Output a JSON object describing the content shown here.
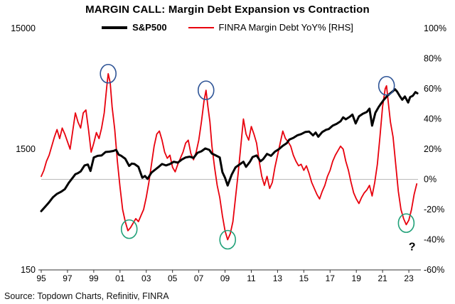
{
  "chart_data": {
    "type": "line",
    "title": "MARGIN CALL: Margin Debt Expansion vs Contraction",
    "source": "Source: Topdown Charts, Refinitiv, FINRA",
    "legend": [
      {
        "label": "S&P500",
        "color": "#000000"
      },
      {
        "label": "FINRA Margin Debt YoY% [RHS]",
        "color": "#e8000d"
      }
    ],
    "x_axis": {
      "range": [
        1995,
        2023.7
      ],
      "tick_years": [
        1995,
        1997,
        1999,
        2001,
        2003,
        2005,
        2007,
        2009,
        2011,
        2013,
        2015,
        2017,
        2019,
        2021,
        2023
      ],
      "tick_labels": [
        "95",
        "97",
        "99",
        "01",
        "03",
        "05",
        "07",
        "09",
        "11",
        "13",
        "15",
        "17",
        "19",
        "21",
        "23"
      ]
    },
    "left_axis": {
      "scale": "log",
      "range": [
        150,
        15000
      ],
      "tick_values": [
        15000,
        1500,
        150
      ],
      "tick_labels": [
        "15000",
        "1500",
        "150"
      ],
      "series": "S&P500"
    },
    "right_axis": {
      "scale": "linear",
      "range": [
        -60,
        100
      ],
      "tick_values": [
        100,
        80,
        60,
        40,
        20,
        0,
        -20,
        -40,
        -60
      ],
      "tick_labels": [
        "100%",
        "80%",
        "60%",
        "40%",
        "20%",
        "0%",
        "-20%",
        "-40%",
        "-60%"
      ],
      "series": "FINRA Margin Debt YoY%"
    },
    "zero_line": {
      "axis": "right",
      "value": 0,
      "color": "#bbbbbb"
    },
    "series": [
      {
        "name": "S&P500",
        "axis": "left",
        "color": "#000000",
        "width": 3,
        "points": [
          [
            1995.0,
            460
          ],
          [
            1995.3,
            500
          ],
          [
            1995.6,
            545
          ],
          [
            1995.9,
            600
          ],
          [
            1996.2,
            640
          ],
          [
            1996.5,
            665
          ],
          [
            1996.8,
            700
          ],
          [
            1997.1,
            790
          ],
          [
            1997.4,
            870
          ],
          [
            1997.6,
            930
          ],
          [
            1997.8,
            950
          ],
          [
            1998.0,
            980
          ],
          [
            1998.3,
            1100
          ],
          [
            1998.55,
            1120
          ],
          [
            1998.75,
            990
          ],
          [
            1999.0,
            1280
          ],
          [
            1999.3,
            1320
          ],
          [
            1999.6,
            1330
          ],
          [
            1999.9,
            1420
          ],
          [
            2000.2,
            1430
          ],
          [
            2000.5,
            1450
          ],
          [
            2000.7,
            1480
          ],
          [
            2000.9,
            1350
          ],
          [
            2001.1,
            1320
          ],
          [
            2001.4,
            1250
          ],
          [
            2001.7,
            1090
          ],
          [
            2001.9,
            1140
          ],
          [
            2002.1,
            1130
          ],
          [
            2002.4,
            1070
          ],
          [
            2002.7,
            870
          ],
          [
            2002.9,
            900
          ],
          [
            2003.1,
            850
          ],
          [
            2003.4,
            960
          ],
          [
            2003.7,
            1020
          ],
          [
            2003.9,
            1060
          ],
          [
            2004.2,
            1130
          ],
          [
            2004.5,
            1100
          ],
          [
            2004.8,
            1130
          ],
          [
            2005.1,
            1180
          ],
          [
            2005.4,
            1160
          ],
          [
            2005.7,
            1230
          ],
          [
            2006.0,
            1280
          ],
          [
            2006.3,
            1300
          ],
          [
            2006.6,
            1270
          ],
          [
            2006.9,
            1400
          ],
          [
            2007.2,
            1440
          ],
          [
            2007.5,
            1520
          ],
          [
            2007.8,
            1480
          ],
          [
            2008.0,
            1380
          ],
          [
            2008.3,
            1330
          ],
          [
            2008.6,
            1280
          ],
          [
            2008.8,
            970
          ],
          [
            2009.0,
            870
          ],
          [
            2009.2,
            750
          ],
          [
            2009.5,
            920
          ],
          [
            2009.8,
            1060
          ],
          [
            2010.1,
            1120
          ],
          [
            2010.4,
            1180
          ],
          [
            2010.6,
            1070
          ],
          [
            2010.9,
            1180
          ],
          [
            2011.1,
            1290
          ],
          [
            2011.4,
            1330
          ],
          [
            2011.7,
            1190
          ],
          [
            2011.9,
            1240
          ],
          [
            2012.2,
            1370
          ],
          [
            2012.5,
            1320
          ],
          [
            2012.8,
            1430
          ],
          [
            2013.1,
            1500
          ],
          [
            2013.4,
            1600
          ],
          [
            2013.7,
            1680
          ],
          [
            2013.9,
            1800
          ],
          [
            2014.2,
            1860
          ],
          [
            2014.5,
            1950
          ],
          [
            2014.8,
            2000
          ],
          [
            2015.1,
            2080
          ],
          [
            2015.4,
            2100
          ],
          [
            2015.7,
            1950
          ],
          [
            2015.9,
            2060
          ],
          [
            2016.1,
            1900
          ],
          [
            2016.4,
            2080
          ],
          [
            2016.7,
            2170
          ],
          [
            2016.9,
            2200
          ],
          [
            2017.2,
            2350
          ],
          [
            2017.5,
            2430
          ],
          [
            2017.8,
            2550
          ],
          [
            2018.0,
            2750
          ],
          [
            2018.2,
            2650
          ],
          [
            2018.5,
            2780
          ],
          [
            2018.7,
            2900
          ],
          [
            2018.95,
            2450
          ],
          [
            2019.2,
            2800
          ],
          [
            2019.5,
            2950
          ],
          [
            2019.8,
            3050
          ],
          [
            2020.0,
            3250
          ],
          [
            2020.2,
            2350
          ],
          [
            2020.45,
            3000
          ],
          [
            2020.7,
            3350
          ],
          [
            2020.9,
            3600
          ],
          [
            2021.1,
            3850
          ],
          [
            2021.4,
            4180
          ],
          [
            2021.7,
            4450
          ],
          [
            2021.95,
            4700
          ],
          [
            2022.1,
            4500
          ],
          [
            2022.3,
            4150
          ],
          [
            2022.5,
            3850
          ],
          [
            2022.7,
            4100
          ],
          [
            2022.95,
            3650
          ],
          [
            2023.1,
            4050
          ],
          [
            2023.3,
            4150
          ],
          [
            2023.5,
            4450
          ],
          [
            2023.65,
            4350
          ]
        ]
      },
      {
        "name": "FINRA Margin Debt YoY% [RHS]",
        "axis": "right",
        "color": "#e8000d",
        "width": 1.8,
        "points": [
          [
            1995.0,
            2
          ],
          [
            1995.2,
            6
          ],
          [
            1995.4,
            12
          ],
          [
            1995.6,
            16
          ],
          [
            1995.8,
            22
          ],
          [
            1996.0,
            28
          ],
          [
            1996.2,
            33
          ],
          [
            1996.4,
            27
          ],
          [
            1996.6,
            34
          ],
          [
            1996.8,
            30
          ],
          [
            1997.0,
            25
          ],
          [
            1997.2,
            20
          ],
          [
            1997.4,
            32
          ],
          [
            1997.6,
            44
          ],
          [
            1997.8,
            38
          ],
          [
            1998.0,
            34
          ],
          [
            1998.2,
            44
          ],
          [
            1998.4,
            46
          ],
          [
            1998.6,
            33
          ],
          [
            1998.8,
            18
          ],
          [
            1999.0,
            24
          ],
          [
            1999.2,
            31
          ],
          [
            1999.4,
            27
          ],
          [
            1999.6,
            34
          ],
          [
            1999.8,
            44
          ],
          [
            2000.0,
            62
          ],
          [
            2000.1,
            70
          ],
          [
            2000.25,
            64
          ],
          [
            2000.4,
            48
          ],
          [
            2000.6,
            33
          ],
          [
            2000.8,
            12
          ],
          [
            2001.0,
            -5
          ],
          [
            2001.2,
            -20
          ],
          [
            2001.4,
            -28
          ],
          [
            2001.6,
            -34
          ],
          [
            2001.8,
            -32
          ],
          [
            2002.0,
            -29
          ],
          [
            2002.2,
            -26
          ],
          [
            2002.4,
            -28
          ],
          [
            2002.6,
            -24
          ],
          [
            2002.8,
            -20
          ],
          [
            2003.0,
            -12
          ],
          [
            2003.2,
            -2
          ],
          [
            2003.4,
            10
          ],
          [
            2003.6,
            22
          ],
          [
            2003.8,
            30
          ],
          [
            2004.0,
            32
          ],
          [
            2004.2,
            26
          ],
          [
            2004.4,
            18
          ],
          [
            2004.6,
            14
          ],
          [
            2004.8,
            16
          ],
          [
            2005.0,
            8
          ],
          [
            2005.2,
            5
          ],
          [
            2005.4,
            10
          ],
          [
            2005.6,
            14
          ],
          [
            2005.8,
            18
          ],
          [
            2006.0,
            24
          ],
          [
            2006.2,
            26
          ],
          [
            2006.4,
            17
          ],
          [
            2006.6,
            13
          ],
          [
            2006.8,
            18
          ],
          [
            2007.0,
            26
          ],
          [
            2007.2,
            38
          ],
          [
            2007.4,
            52
          ],
          [
            2007.55,
            59
          ],
          [
            2007.7,
            48
          ],
          [
            2007.85,
            38
          ],
          [
            2008.0,
            22
          ],
          [
            2008.2,
            8
          ],
          [
            2008.4,
            -4
          ],
          [
            2008.6,
            -12
          ],
          [
            2008.8,
            -24
          ],
          [
            2009.0,
            -34
          ],
          [
            2009.2,
            -40
          ],
          [
            2009.4,
            -36
          ],
          [
            2009.6,
            -28
          ],
          [
            2009.8,
            -12
          ],
          [
            2010.0,
            4
          ],
          [
            2010.2,
            22
          ],
          [
            2010.4,
            40
          ],
          [
            2010.6,
            30
          ],
          [
            2010.8,
            26
          ],
          [
            2011.0,
            35
          ],
          [
            2011.2,
            30
          ],
          [
            2011.4,
            24
          ],
          [
            2011.6,
            12
          ],
          [
            2011.8,
            2
          ],
          [
            2012.0,
            -4
          ],
          [
            2012.2,
            2
          ],
          [
            2012.4,
            -6
          ],
          [
            2012.6,
            -2
          ],
          [
            2012.8,
            8
          ],
          [
            2013.0,
            16
          ],
          [
            2013.2,
            24
          ],
          [
            2013.4,
            32
          ],
          [
            2013.6,
            27
          ],
          [
            2013.8,
            25
          ],
          [
            2014.0,
            22
          ],
          [
            2014.2,
            16
          ],
          [
            2014.4,
            12
          ],
          [
            2014.6,
            9
          ],
          [
            2014.8,
            10
          ],
          [
            2015.0,
            6
          ],
          [
            2015.2,
            9
          ],
          [
            2015.4,
            4
          ],
          [
            2015.6,
            -2
          ],
          [
            2015.8,
            -6
          ],
          [
            2016.0,
            -10
          ],
          [
            2016.2,
            -13
          ],
          [
            2016.4,
            -8
          ],
          [
            2016.6,
            -4
          ],
          [
            2016.8,
            2
          ],
          [
            2017.0,
            6
          ],
          [
            2017.2,
            12
          ],
          [
            2017.4,
            16
          ],
          [
            2017.6,
            19
          ],
          [
            2017.8,
            22
          ],
          [
            2018.0,
            20
          ],
          [
            2018.2,
            12
          ],
          [
            2018.4,
            6
          ],
          [
            2018.6,
            -2
          ],
          [
            2018.8,
            -9
          ],
          [
            2019.0,
            -13
          ],
          [
            2019.2,
            -16
          ],
          [
            2019.4,
            -12
          ],
          [
            2019.6,
            -9
          ],
          [
            2019.8,
            -7
          ],
          [
            2020.0,
            -4
          ],
          [
            2020.2,
            -11
          ],
          [
            2020.4,
            -2
          ],
          [
            2020.6,
            10
          ],
          [
            2020.8,
            28
          ],
          [
            2021.0,
            48
          ],
          [
            2021.2,
            60
          ],
          [
            2021.3,
            62
          ],
          [
            2021.45,
            50
          ],
          [
            2021.6,
            38
          ],
          [
            2021.8,
            28
          ],
          [
            2022.0,
            10
          ],
          [
            2022.2,
            -8
          ],
          [
            2022.4,
            -20
          ],
          [
            2022.6,
            -26
          ],
          [
            2022.8,
            -30
          ],
          [
            2023.0,
            -27
          ],
          [
            2023.2,
            -20
          ],
          [
            2023.4,
            -10
          ],
          [
            2023.6,
            -3
          ]
        ]
      }
    ],
    "annotations": {
      "peak_circles": {
        "color": "#2f5597",
        "axis": "right",
        "points": [
          [
            2000.1,
            70
          ],
          [
            2007.55,
            59
          ],
          [
            2021.3,
            62
          ]
        ]
      },
      "trough_circles": {
        "color": "#21a179",
        "axis": "right",
        "points": [
          [
            2001.7,
            -33
          ],
          [
            2009.2,
            -40
          ],
          [
            2022.8,
            -29
          ]
        ]
      },
      "question_mark": {
        "text": "?",
        "color": "#00b0a6",
        "x": 2023.25,
        "y": -47
      }
    }
  }
}
